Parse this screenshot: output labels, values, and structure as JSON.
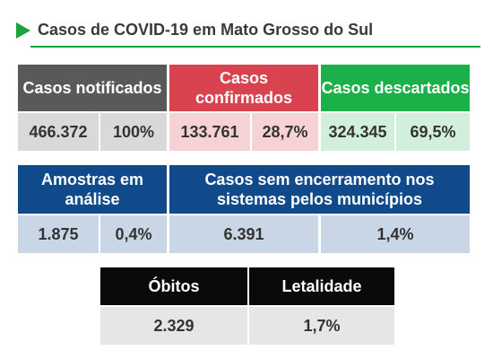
{
  "title": "Casos de COVID-19 em Mato Grosso do Sul",
  "colors": {
    "accent": "#1aa33b",
    "notificados": "#595959",
    "confirmados": "#d9434f",
    "descartados": "#1bb04a",
    "amostras": "#114a8a",
    "obitos": "#0a0a0a"
  },
  "top": {
    "notificados": {
      "label": "Casos notificados",
      "count": "466.372",
      "percent": "100%"
    },
    "confirmados": {
      "label": "Casos confirmados",
      "count": "133.761",
      "percent": "28,7%"
    },
    "descartados": {
      "label": "Casos descartados",
      "count": "324.345",
      "percent": "69,5%"
    }
  },
  "middle": {
    "amostras": {
      "label": "Amostras em análise",
      "count": "1.875",
      "percent": "0,4%"
    },
    "sem_encerramento": {
      "label": "Casos sem encerramento nos sistemas pelos municípios",
      "count": "6.391",
      "percent": "1,4%"
    }
  },
  "bottom": {
    "obitos": {
      "label": "Óbitos",
      "value": "2.329"
    },
    "letalidade": {
      "label": "Letalidade",
      "value": "1,7%"
    }
  }
}
